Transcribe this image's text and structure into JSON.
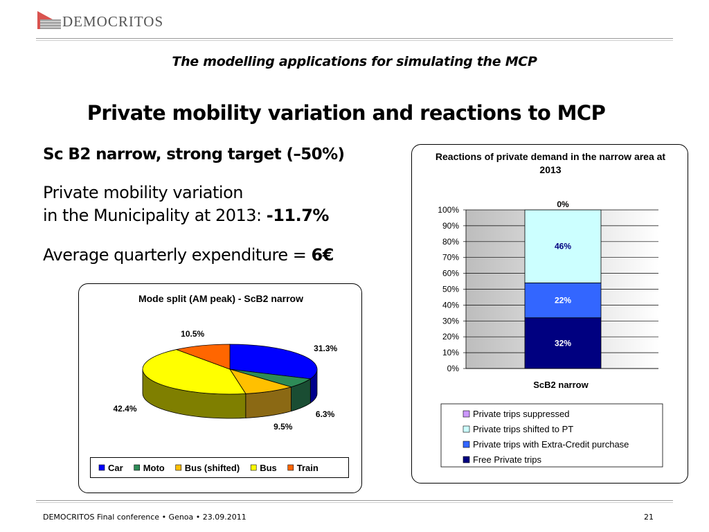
{
  "header": {
    "logo_text": "DEMOCRITOS"
  },
  "slide": {
    "subtitle": "The modelling applications for simulating the MCP",
    "title": "Private mobility variation and reactions to MCP",
    "scenario": "Sc B2 narrow, strong target (–50%)",
    "variation_line1": "Private mobility variation",
    "variation_line2": "in the Municipality at 2013: ",
    "variation_value": "-11.7%",
    "expenditure_label": "Average quarterly expenditure = ",
    "expenditure_value": "6€"
  },
  "footer": {
    "left": "DEMOCRITOS Final conference • Genoa • 23.09.2011",
    "page": "21"
  },
  "chart_data": [
    {
      "type": "pie",
      "title": "Mode split (AM peak) - ScB2 narrow",
      "categories": [
        "Car",
        "Moto",
        "Bus (shifted)",
        "Bus",
        "Train"
      ],
      "values": [
        31.3,
        6.3,
        9.5,
        42.4,
        10.5
      ],
      "data_labels": [
        "31.3%",
        "6.3%",
        "9.5%",
        "42.4%",
        "10.5%"
      ],
      "colors": [
        "#0000ff",
        "#2e8b57",
        "#ffc000",
        "#ffff00",
        "#ff6600"
      ],
      "side_colors": [
        "#00008b",
        "#1a4d33",
        "#8b6914",
        "#7f7f00",
        "#8b3a00"
      ],
      "legend_position": "bottom"
    },
    {
      "type": "bar",
      "stacked": true,
      "title": "Reactions of private demand in the narrow area at 2013",
      "categories": [
        "ScB2 narrow"
      ],
      "series": [
        {
          "name": "Free Private trips",
          "values": [
            32
          ],
          "label": "32%",
          "color": "#000080"
        },
        {
          "name": "Private trips with Extra-Credit purchase",
          "values": [
            22
          ],
          "label": "22%",
          "color": "#3366ff"
        },
        {
          "name": "Private trips shifted to PT",
          "values": [
            46
          ],
          "label": "46%",
          "color": "#ccffff"
        },
        {
          "name": "Private trips suppressed",
          "values": [
            0
          ],
          "label": "0%",
          "color": "#cc99ff"
        }
      ],
      "y_ticks": [
        "0%",
        "10%",
        "20%",
        "30%",
        "40%",
        "50%",
        "60%",
        "70%",
        "80%",
        "90%",
        "100%"
      ],
      "ylim": [
        0,
        100
      ],
      "grid": true,
      "legend_position": "bottom",
      "legend_order": [
        "Private trips suppressed",
        "Private trips shifted to PT",
        "Private trips with Extra-Credit purchase",
        "Free Private trips"
      ]
    }
  ]
}
